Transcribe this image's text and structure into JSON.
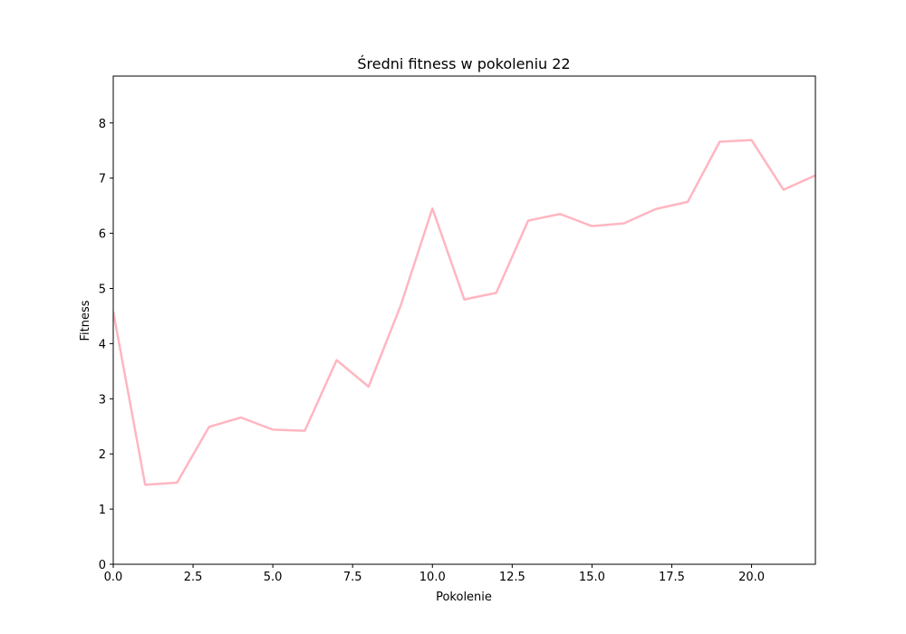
{
  "chart_data": {
    "type": "line",
    "title": "Średni fitness w pokoleniu 22",
    "xlabel": "Pokolenie",
    "ylabel": "Fitness",
    "xlim": [
      0,
      22
    ],
    "ylim": [
      0,
      8.85
    ],
    "xticks": [
      "0.0",
      "2.5",
      "5.0",
      "7.5",
      "10.0",
      "12.5",
      "15.0",
      "17.5",
      "20.0"
    ],
    "yticks": [
      "0",
      "1",
      "2",
      "3",
      "4",
      "5",
      "6",
      "7",
      "8"
    ],
    "grid": false,
    "series": [
      {
        "color": "#ffb6c1",
        "x": [
          0,
          1,
          2,
          3,
          4,
          5,
          6,
          7,
          8,
          9,
          10,
          11,
          12,
          13,
          14,
          15,
          16,
          17,
          18,
          19,
          20,
          21,
          22
        ],
        "y": [
          4.58,
          1.44,
          1.48,
          2.49,
          2.66,
          2.44,
          2.42,
          3.7,
          3.22,
          4.68,
          6.45,
          4.8,
          4.92,
          6.23,
          6.35,
          6.13,
          6.18,
          6.44,
          6.57,
          7.66,
          7.69,
          6.79,
          7.05
        ]
      }
    ]
  }
}
